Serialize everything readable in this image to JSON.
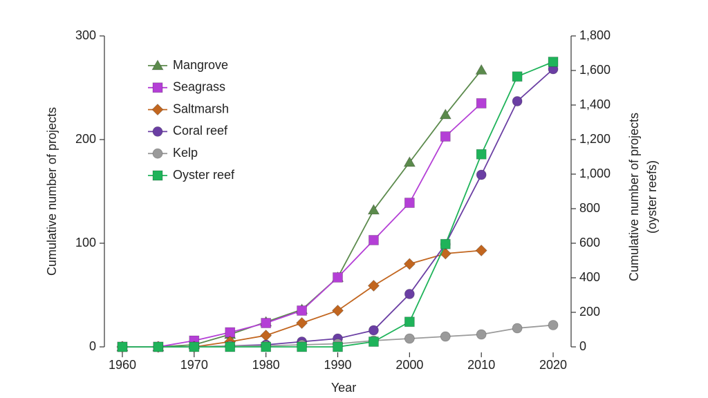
{
  "chart_data": {
    "type": "line",
    "x_label": "Year",
    "y_label": "Cumulative number of projects",
    "y2_label": [
      "Cumulative number of projects",
      "(oyster reefs)"
    ],
    "x": [
      1960,
      1965,
      1970,
      1975,
      1980,
      1985,
      1990,
      1995,
      2000,
      2005,
      2010,
      2015,
      2020
    ],
    "xlim": [
      1957.5,
      2022.5
    ],
    "xticks": [
      1960,
      1970,
      1980,
      1990,
      2000,
      2010,
      2020
    ],
    "ylim": [
      0,
      300
    ],
    "yticks": [
      0,
      100,
      200,
      300
    ],
    "y2lim": [
      0,
      1800
    ],
    "y2ticks": [
      0,
      200,
      400,
      600,
      800,
      {
        "value": 1000,
        "label": "1,000"
      },
      {
        "value": 1200,
        "label": "1,200"
      },
      {
        "value": 1400,
        "label": "1,400"
      },
      {
        "value": 1600,
        "label": "1,600"
      },
      {
        "value": 1800,
        "label": "1,800"
      }
    ],
    "grid": false,
    "legend": "upper left",
    "series": [
      {
        "name": "Mangrove",
        "color": "#5b8a4c",
        "marker": "triangle",
        "values": [
          0,
          0,
          2,
          12,
          24,
          36,
          67,
          132,
          178,
          224,
          267,
          null,
          null
        ]
      },
      {
        "name": "Seagrass",
        "color": "#b43fd6",
        "marker": "square",
        "values": [
          0,
          0,
          6,
          14,
          23,
          35,
          67,
          103,
          139,
          203,
          235,
          null,
          null
        ]
      },
      {
        "name": "Saltmarsh",
        "color": "#c2661f",
        "marker": "diamond",
        "values": [
          0,
          0,
          0,
          5,
          11,
          23,
          35,
          59,
          80,
          90,
          93,
          null,
          null
        ]
      },
      {
        "name": "Coral reef",
        "color": "#6a3ea3",
        "marker": "circle",
        "values": [
          0,
          0,
          0,
          1,
          2,
          5,
          8,
          16,
          51,
          99,
          166,
          237,
          268
        ]
      },
      {
        "name": "Kelp",
        "color": "#9a9a9a",
        "marker": "circle",
        "values": [
          0,
          0,
          0,
          1,
          1,
          2,
          3,
          6,
          8,
          10,
          12,
          18,
          21
        ]
      },
      {
        "name": "Oyster reef",
        "color": "#1fb35a",
        "marker": "square",
        "axis": "y2",
        "values": [
          0,
          0,
          0,
          0,
          0,
          0,
          0,
          30,
          145,
          595,
          1115,
          1565,
          1650
        ]
      }
    ]
  }
}
